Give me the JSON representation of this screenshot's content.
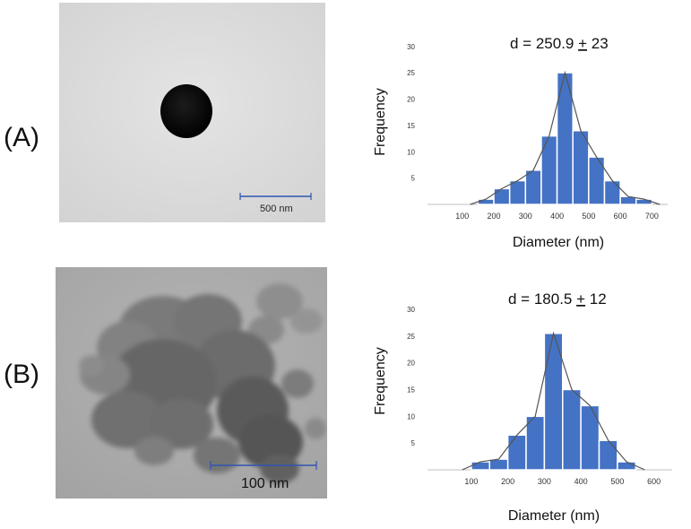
{
  "panels": [
    {
      "label": "(A)",
      "scale_bar": "500 nm"
    },
    {
      "label": "(B)",
      "scale_bar": "100 nm"
    }
  ],
  "colors": {
    "bar": "#4472c4",
    "bar_edge": "#ffffff",
    "line": "#555555",
    "axis": "#bfbfbf"
  },
  "chart_data": [
    {
      "type": "bar",
      "title": "d  = 250.9 ± 23",
      "title_parts": {
        "prefix": "d  = 250.9 ",
        "pm": "+",
        "suffix": " 23"
      },
      "xlabel": "Diameter (nm)",
      "ylabel": "Frequency",
      "x_ticks": [
        "100",
        "200",
        "300",
        "400",
        "500",
        "600",
        "700"
      ],
      "y_ticks": [
        "5",
        "10",
        "15",
        "20",
        "25",
        "30"
      ],
      "xlim": [
        -10,
        750
      ],
      "ylim": [
        0,
        32
      ],
      "bin_width": 50,
      "x": [
        175,
        225,
        275,
        325,
        375,
        425,
        475,
        525,
        575,
        625,
        675
      ],
      "values": [
        1,
        3,
        4.5,
        6.5,
        13,
        25,
        14,
        9,
        4.5,
        1.5,
        1
      ],
      "frequency_polygon": true,
      "grid": false
    },
    {
      "type": "bar",
      "title": "d  = 180.5 ± 12",
      "title_parts": {
        "prefix": "d  = 180.5 ",
        "pm": "+",
        "suffix": " 12"
      },
      "xlabel": "Diameter (nm)",
      "ylabel": "Frequency",
      "x_ticks": [
        "100",
        "200",
        "300",
        "400",
        "500",
        "600"
      ],
      "y_ticks": [
        "5",
        "10",
        "15",
        "20",
        "25",
        "30"
      ],
      "xlim": [
        -20,
        650
      ],
      "ylim": [
        0,
        32
      ],
      "bin_width": 50,
      "x": [
        125,
        175,
        225,
        275,
        325,
        375,
        425,
        475,
        525
      ],
      "values": [
        1.5,
        2,
        6.5,
        10,
        25.5,
        15,
        12,
        5.5,
        1.5
      ],
      "frequency_polygon": true,
      "grid": false
    }
  ]
}
